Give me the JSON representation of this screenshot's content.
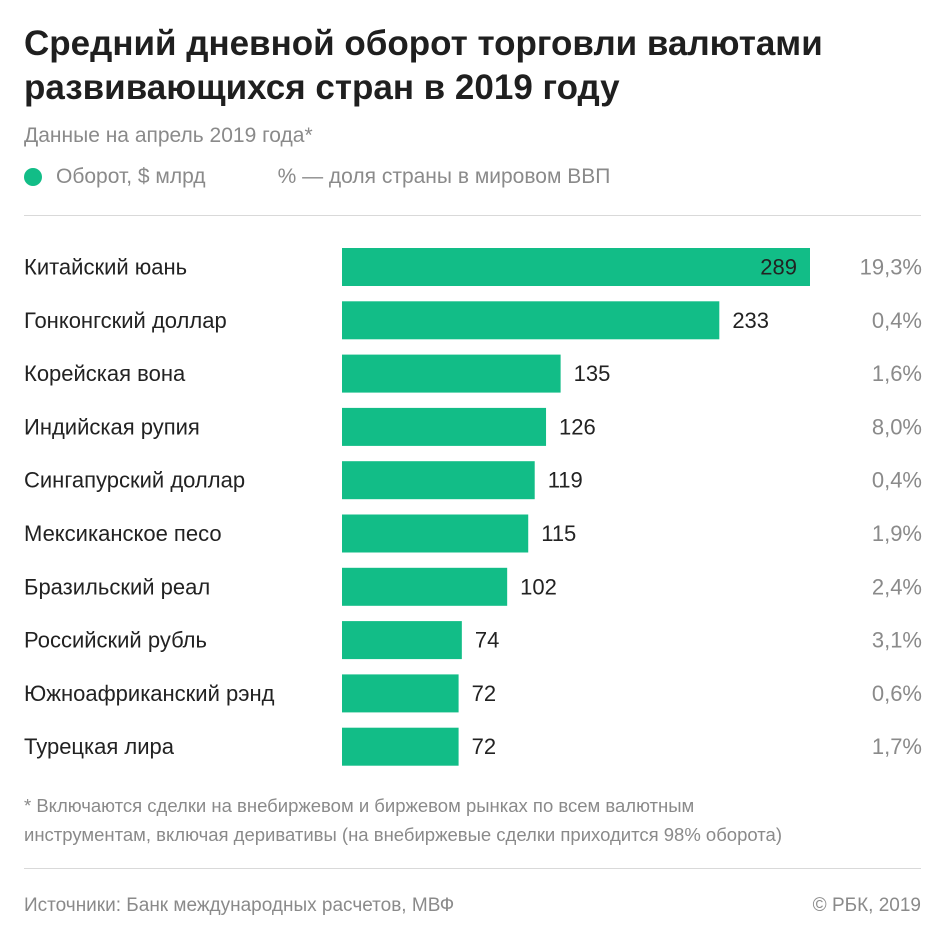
{
  "chart_data": {
    "type": "bar",
    "orientation": "horizontal",
    "title_lines": [
      "Средний дневной оборот торговли валютами",
      "развивающихся стран в 2019 году"
    ],
    "subtitle": "Данные на апрель 2019 года*",
    "legend": {
      "series_label": "Оборот, $ млрд",
      "note": "% — доля страны в мировом ВВП",
      "placement": "top-left"
    },
    "categories": [
      "Китайский юань",
      "Гонконгский доллар",
      "Корейская вона",
      "Индийская рупия",
      "Сингапурский доллар",
      "Мексиканское песо",
      "Бразильский реал",
      "Российский рубль",
      "Южноафриканский рэнд",
      "Турецкая лира"
    ],
    "series": [
      {
        "name": "Оборот, $ млрд",
        "color": "#12bd87",
        "values": [
          289,
          233,
          135,
          126,
          119,
          115,
          102,
          74,
          72,
          72
        ]
      }
    ],
    "gdp_share_labels": [
      "19,3%",
      "0,4%",
      "1,6%",
      "8,0%",
      "0,4%",
      "1,9%",
      "2,4%",
      "3,1%",
      "0,6%",
      "1,7%"
    ],
    "xlim": [
      0,
      289
    ],
    "grid": false
  },
  "footnote_lines": [
    "* Включаются сделки на внебиржевом и биржевом рынках по всем валютным",
    "инструментам, включая деривативы (на внебиржевые сделки приходится 98% оборота)"
  ],
  "sources": "Источники: Банк международных расчетов, МВФ",
  "copyright": "© РБК, 2019"
}
